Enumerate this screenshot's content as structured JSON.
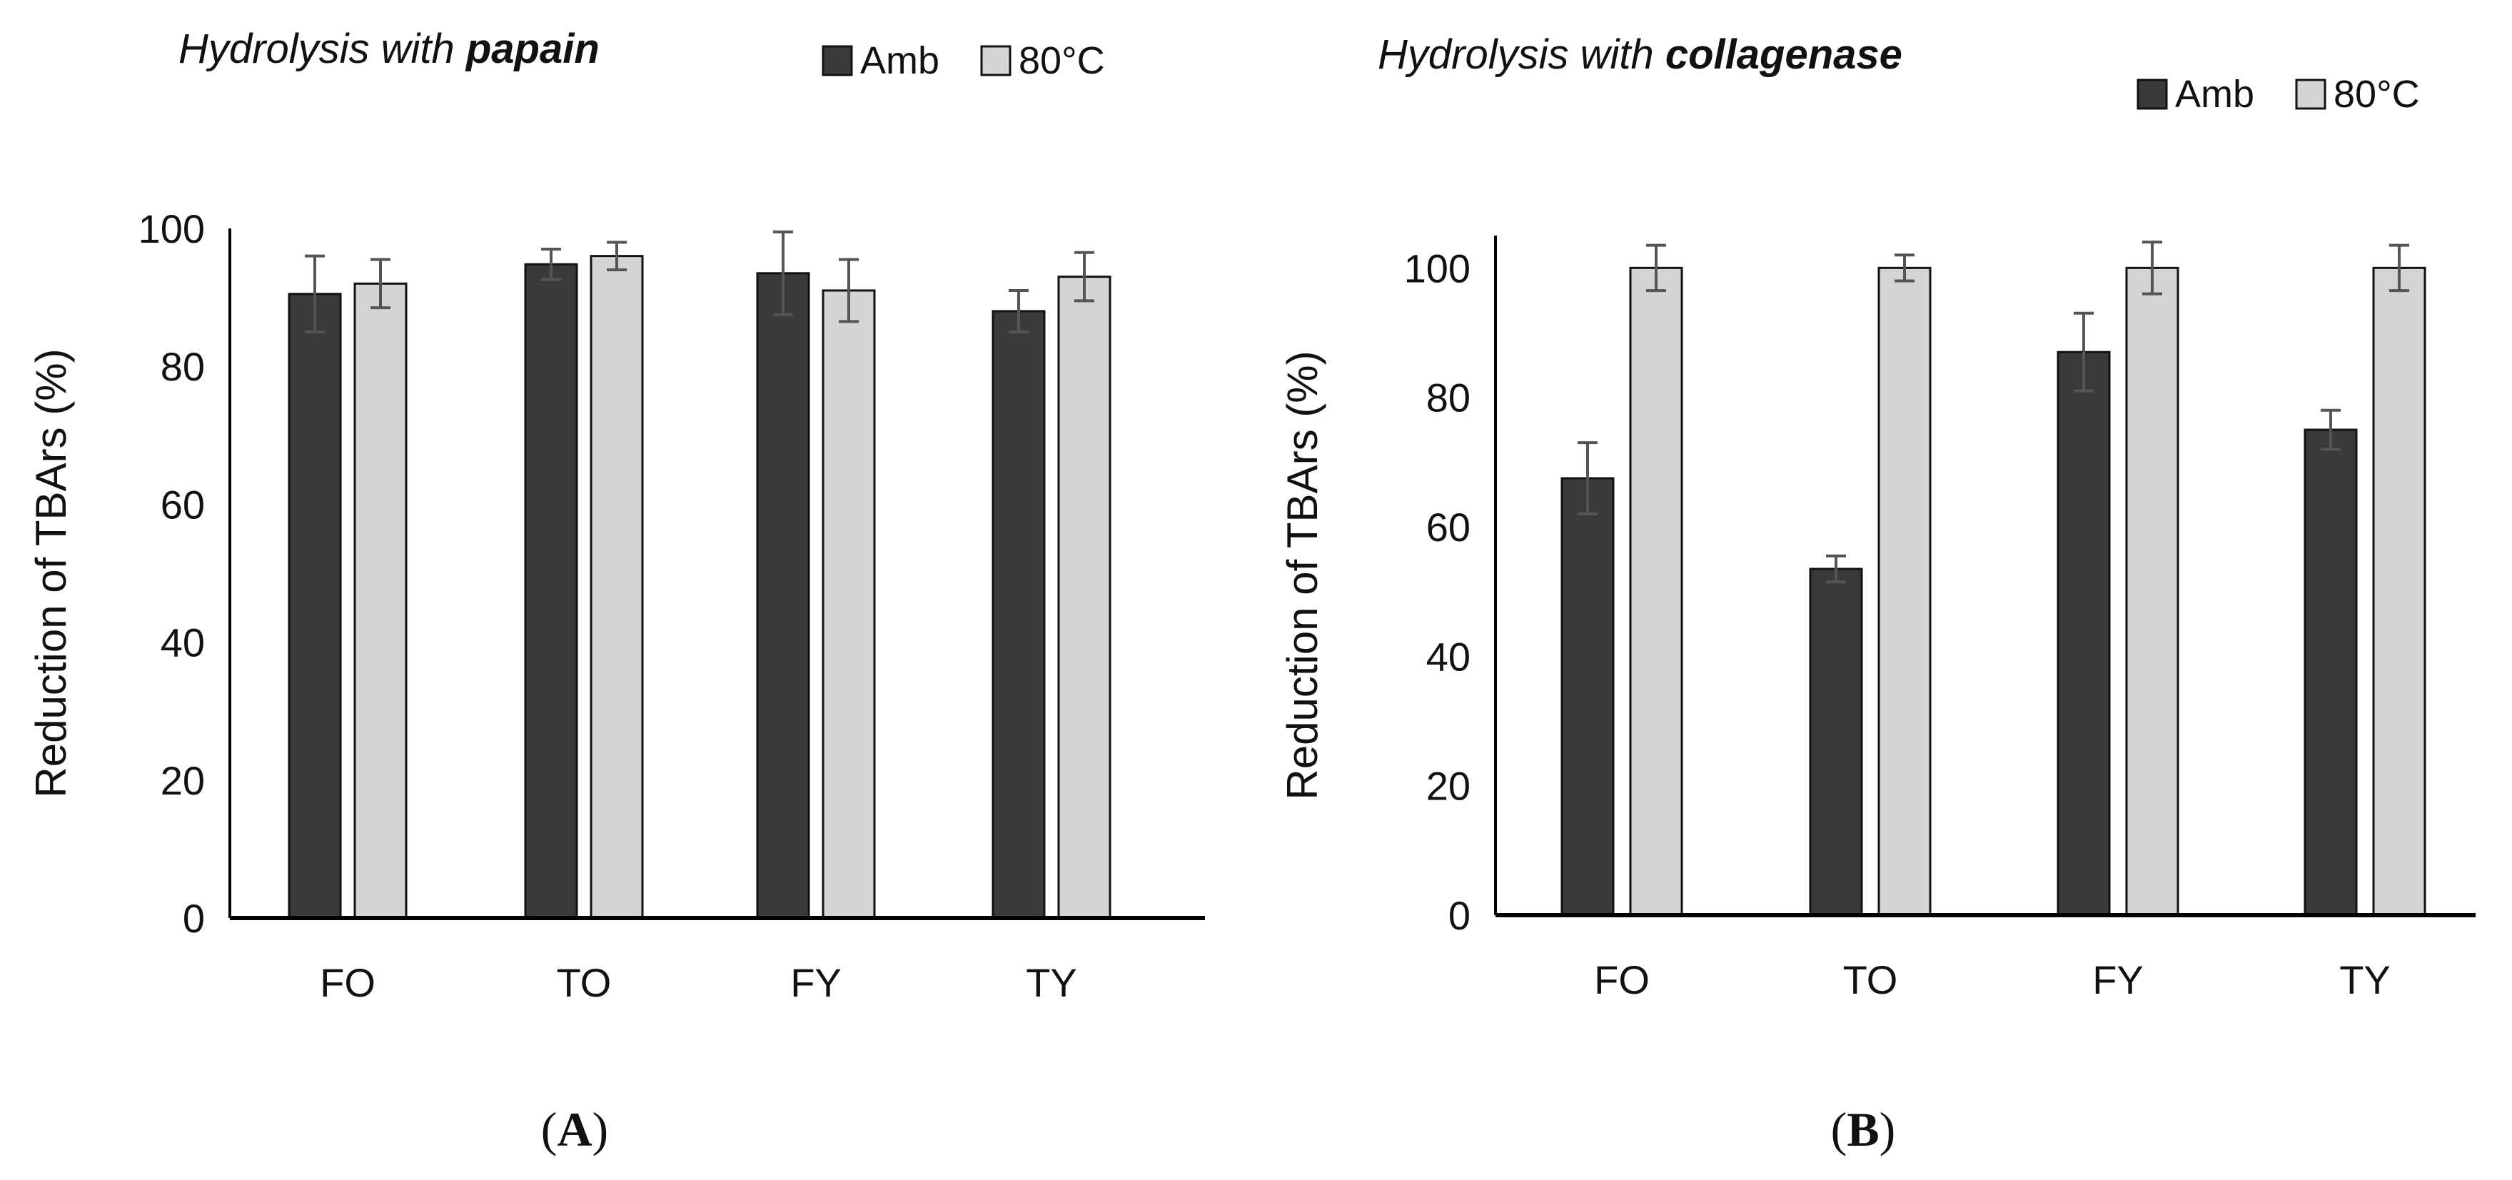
{
  "colors": {
    "amb": "#3a3a3a",
    "hot": "#d4d4d4",
    "axis": "#000000",
    "error": "#555555"
  },
  "chart_data": [
    {
      "type": "bar",
      "title_prefix": "Hydrolysis with ",
      "title_bold": "papain",
      "categories": [
        "FO",
        "TO",
        "FY",
        "TY"
      ],
      "series": [
        {
          "name": "Amb",
          "values": [
            90.5,
            94.8,
            93.5,
            88.0
          ],
          "errors": [
            5.5,
            2.2,
            6.0,
            3.0
          ]
        },
        {
          "name": "80°C",
          "values": [
            92.0,
            96.0,
            91.0,
            93.0
          ],
          "errors": [
            3.5,
            2.0,
            4.5,
            3.5
          ]
        }
      ],
      "yticks": [
        0,
        20,
        40,
        60,
        80,
        100
      ],
      "ylim": [
        0,
        100
      ],
      "ylabel": "Reduction of TBArs (%)",
      "xlabel": "",
      "panel_open": "(",
      "panel_letter": "A",
      "panel_close": ")"
    },
    {
      "type": "bar",
      "title_prefix": "Hydrolysis with ",
      "title_bold": "collagenase",
      "categories": [
        "FO",
        "TO",
        "FY",
        "TY"
      ],
      "series": [
        {
          "name": "Amb",
          "values": [
            67.5,
            53.5,
            87.0,
            75.0
          ],
          "errors": [
            5.5,
            2.0,
            6.0,
            3.0
          ]
        },
        {
          "name": "80°C",
          "values": [
            100,
            100,
            100,
            100
          ],
          "errors": [
            3.5,
            2.0,
            4.0,
            3.5
          ]
        }
      ],
      "yticks": [
        0,
        20,
        40,
        60,
        80,
        100
      ],
      "ylim": [
        0,
        105
      ],
      "ylabel": "Reduction of TBArs (%)",
      "xlabel": "",
      "panel_open": "(",
      "panel_letter": "B",
      "panel_close": ")"
    }
  ]
}
